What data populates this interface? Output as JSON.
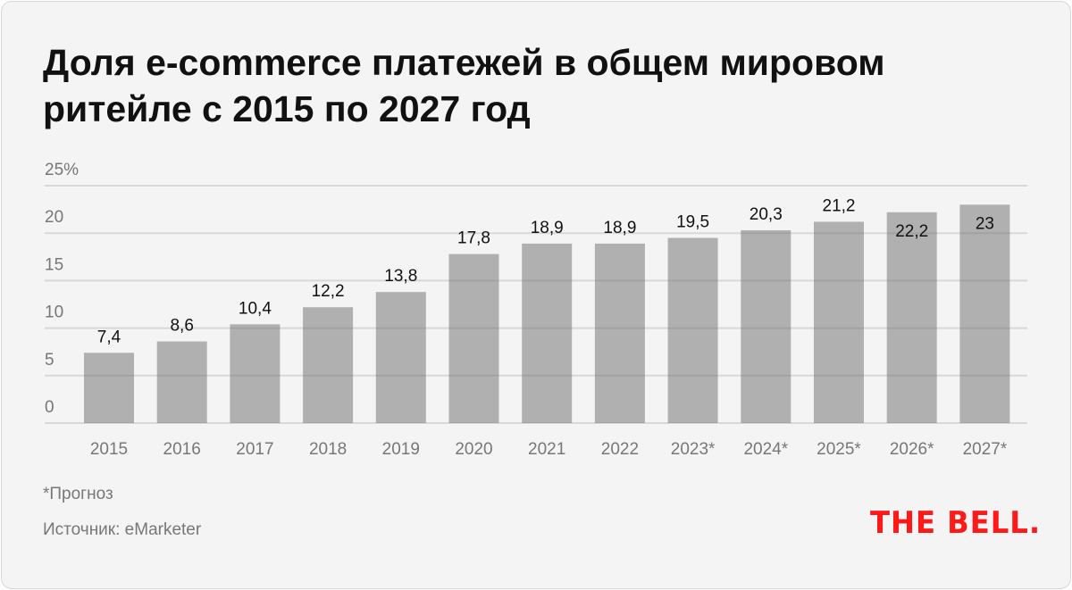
{
  "chart_data": {
    "type": "bar",
    "title": "Доля e-commerce платежей в общем мировом ритейле с 2015 по 2027 год",
    "categories": [
      "2015",
      "2016",
      "2017",
      "2018",
      "2019",
      "2020",
      "2021",
      "2022",
      "2023*",
      "2024*",
      "2025*",
      "2026*",
      "2027*"
    ],
    "values": [
      7.4,
      8.6,
      10.4,
      12.2,
      13.8,
      17.8,
      18.9,
      18.9,
      19.5,
      20.3,
      21.2,
      22.2,
      23
    ],
    "value_labels": [
      "7,4",
      "8,6",
      "10,4",
      "12,2",
      "13,8",
      "17,8",
      "18,9",
      "18,9",
      "19,5",
      "20,3",
      "21,2",
      "22,2",
      "23"
    ],
    "ylim": [
      0,
      25
    ],
    "yticks": [
      0,
      5,
      10,
      15,
      20,
      25
    ],
    "ytick_labels": [
      "0",
      "5",
      "10",
      "15",
      "20",
      "25%"
    ],
    "grid": true,
    "xlabel": "",
    "ylabel": "",
    "bar_color": "#b0b0b0"
  },
  "footnote": "*Прогноз",
  "source": "Источник: eMarketer",
  "logo": "THE BELL.",
  "colors": {
    "brand": "#ff1a1a",
    "background": "#f4f4f4"
  }
}
